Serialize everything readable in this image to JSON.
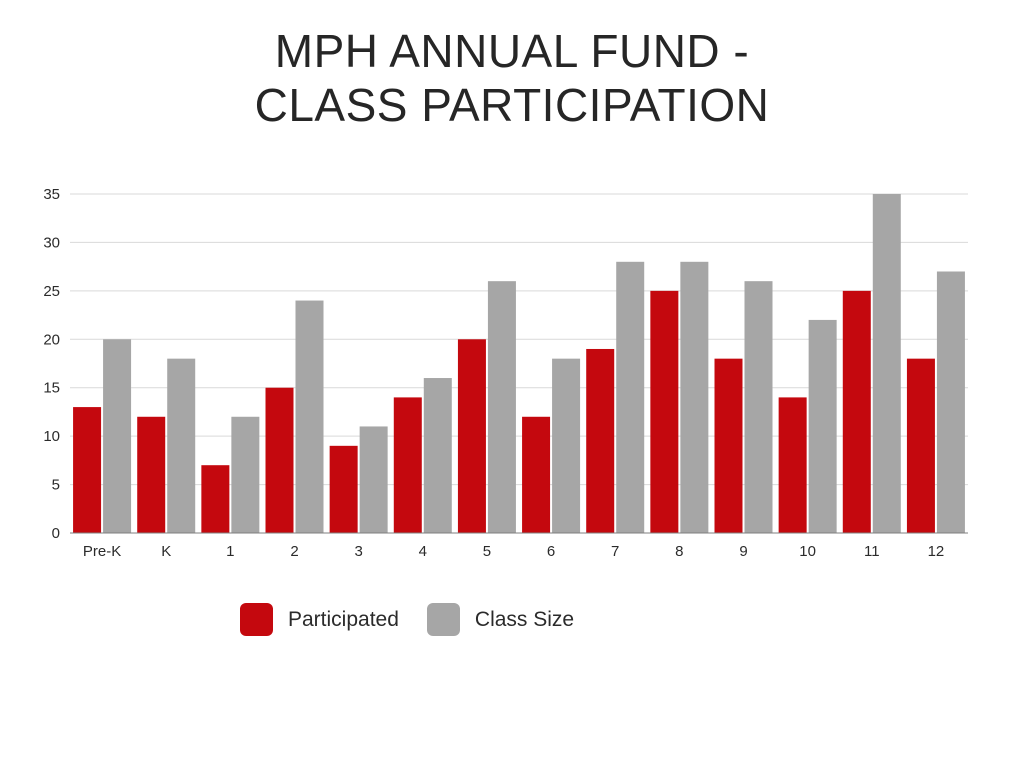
{
  "title": {
    "line1": "MPH ANNUAL FUND -",
    "line2": "CLASS PARTICIPATION"
  },
  "colors": {
    "participated": "#c4080e",
    "class_size": "#a6a6a6",
    "grid": "#d9d9d9",
    "axis": "#7f7f7f",
    "text": "#2b2b2b"
  },
  "legend": {
    "participated_label": "Participated",
    "class_size_label": "Class Size"
  },
  "chart_data": {
    "type": "bar",
    "title": "MPH ANNUAL FUND - CLASS PARTICIPATION",
    "xlabel": "",
    "ylabel": "",
    "categories": [
      "Pre-K",
      "K",
      "1",
      "2",
      "3",
      "4",
      "5",
      "6",
      "7",
      "8",
      "9",
      "10",
      "11",
      "12"
    ],
    "series": [
      {
        "name": "Participated",
        "values": [
          13,
          12,
          7,
          15,
          9,
          14,
          20,
          12,
          19,
          25,
          18,
          14,
          25,
          18
        ]
      },
      {
        "name": "Class Size",
        "values": [
          20,
          18,
          12,
          24,
          11,
          16,
          26,
          18,
          28,
          28,
          26,
          22,
          35,
          27
        ]
      }
    ],
    "ylim": [
      0,
      35
    ],
    "yticks": [
      0,
      5,
      10,
      15,
      20,
      25,
      30,
      35
    ],
    "grid": true,
    "legend_position": "bottom"
  }
}
